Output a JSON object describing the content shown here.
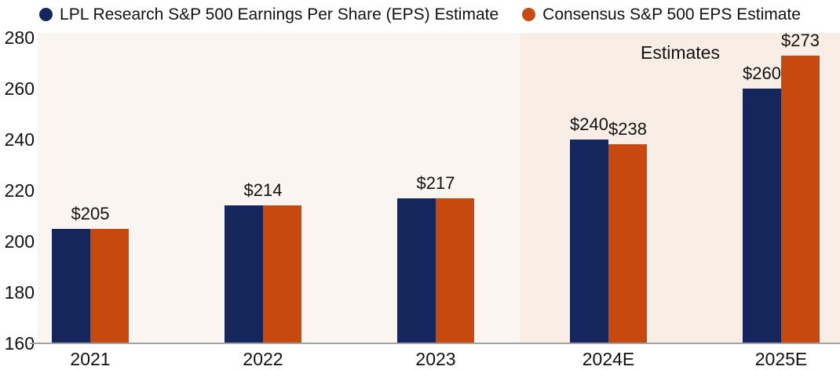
{
  "legend": {
    "items": [
      {
        "label": "LPL Research S&P 500 Earnings Per Share (EPS) Estimate"
      },
      {
        "label": "Consensus S&P 500 EPS Estimate"
      }
    ]
  },
  "chart_data": {
    "type": "bar",
    "title": "",
    "categories": [
      "2021",
      "2022",
      "2023",
      "2024E",
      "2025E"
    ],
    "series": [
      {
        "name": "LPL Research S&P 500 Earnings Per Share (EPS) Estimate",
        "color": "#14265c",
        "values": [
          205,
          214,
          217,
          240,
          260
        ]
      },
      {
        "name": "Consensus S&P 500 EPS Estimate",
        "color": "#c8490f",
        "values": [
          205,
          214,
          217,
          238,
          273
        ]
      }
    ],
    "value_labels": [
      [
        "$205"
      ],
      [
        "$214"
      ],
      [
        "$217"
      ],
      [
        "$240",
        "$238"
      ],
      [
        "$260",
        "$273"
      ]
    ],
    "ylim": [
      160,
      280
    ],
    "yticks": [
      280,
      260,
      240,
      220,
      200,
      180,
      160
    ],
    "grid": false,
    "legend_position": "top",
    "annotation": "Estimates",
    "estimates_from_category_index": 3,
    "colors": {
      "historical_background": "#fbf5f2",
      "estimates_background": "#f8eee6",
      "axis_line": "#a3a3a3",
      "text": "#111111"
    }
  }
}
